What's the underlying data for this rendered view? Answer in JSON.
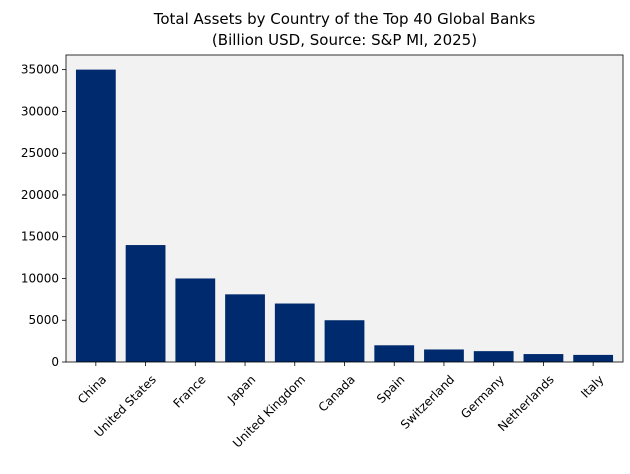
{
  "chart_data": {
    "type": "bar",
    "title_line1": "Total Assets by Country of the Top 40 Global Banks",
    "title_line2": "(Billion USD, Source: S&P MI, 2025)",
    "xlabel": "",
    "ylabel": "",
    "categories": [
      "China",
      "United States",
      "France",
      "Japan",
      "United Kingdom",
      "Canada",
      "Spain",
      "Switzerland",
      "Germany",
      "Netherlands",
      "Italy"
    ],
    "values": [
      35000,
      14000,
      10000,
      8100,
      7000,
      5000,
      2000,
      1500,
      1300,
      950,
      850
    ],
    "ylim": [
      0,
      36750
    ],
    "yticks": [
      0,
      5000,
      10000,
      15000,
      20000,
      25000,
      30000,
      35000
    ],
    "bar_color": "#002a6e",
    "plot_background": "#f2f2f2",
    "grid": false,
    "legend": "none"
  }
}
